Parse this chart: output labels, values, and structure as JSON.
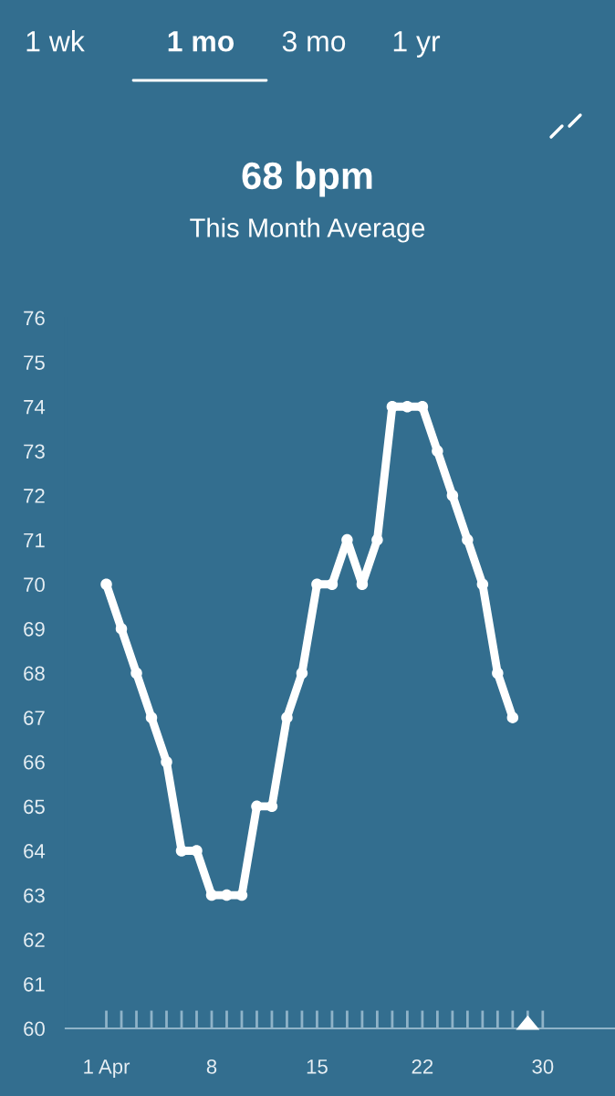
{
  "chart_data": {
    "type": "line",
    "title": "68 bpm",
    "subtitle": "This Month Average",
    "annotations": [
      "1 wk",
      "1 mo",
      "3 mo",
      "1 yr"
    ],
    "x": [
      1,
      2,
      3,
      4,
      5,
      6,
      7,
      8,
      9,
      10,
      11,
      12,
      13,
      14,
      15,
      16,
      17,
      18,
      19,
      20,
      21,
      22,
      23,
      24,
      25,
      26,
      27,
      28
    ],
    "series": [
      {
        "color": "#ffffff",
        "values": [
          70,
          69,
          68,
          67,
          66,
          64,
          64,
          63,
          63,
          63,
          65,
          65,
          67,
          68,
          70,
          70,
          71,
          70,
          71,
          74,
          74,
          74,
          73,
          72,
          71,
          70,
          68,
          67
        ]
      }
    ],
    "xlim": [
      -1.7,
      34.8
    ],
    "xticks": [
      {
        "value": 1,
        "label": "1 Apr"
      },
      {
        "value": 2,
        "label": null
      },
      {
        "value": 3,
        "label": null
      },
      {
        "value": 4,
        "label": null
      },
      {
        "value": 5,
        "label": null
      },
      {
        "value": 6,
        "label": null
      },
      {
        "value": 7,
        "label": null
      },
      8,
      {
        "value": 9,
        "label": null
      },
      {
        "value": 10,
        "label": null
      },
      {
        "value": 11,
        "label": null
      },
      {
        "value": 12,
        "label": null
      },
      {
        "value": 13,
        "label": null
      },
      {
        "value": 14,
        "label": null
      },
      15,
      {
        "value": 16,
        "label": null
      },
      {
        "value": 17,
        "label": null
      },
      {
        "value": 18,
        "label": null
      },
      {
        "value": 19,
        "label": null
      },
      {
        "value": 20,
        "label": null
      },
      {
        "value": 21,
        "label": null
      },
      22,
      {
        "value": 23,
        "label": null
      },
      {
        "value": 24,
        "label": null
      },
      {
        "value": 25,
        "label": null
      },
      {
        "value": 26,
        "label": null
      },
      {
        "value": 27,
        "label": null
      },
      {
        "value": 28,
        "label": null
      },
      {
        "value": 29,
        "label": null
      },
      30
    ],
    "ylim": [
      60,
      76
    ],
    "yticks": [
      60,
      61,
      62,
      63,
      64,
      65,
      66,
      67,
      68,
      69,
      70,
      71,
      72,
      73,
      74,
      75,
      76
    ],
    "grid": false,
    "legend": false,
    "marker": "circle",
    "line_style": "solid"
  }
}
